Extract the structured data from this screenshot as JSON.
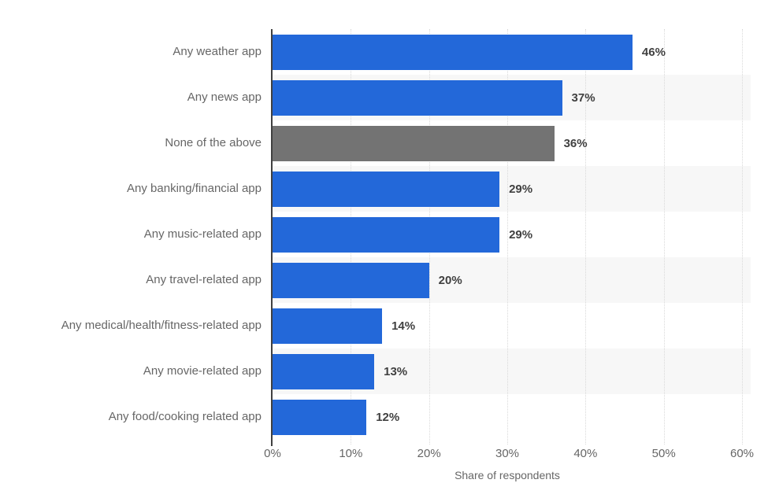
{
  "chart_data": {
    "type": "bar",
    "orientation": "horizontal",
    "title": "",
    "xlabel": "Share of respondents",
    "ylabel": "",
    "xlim": [
      0,
      60
    ],
    "grid": "vertical dotted gridlines every 10%",
    "legend": "none",
    "categories": [
      "Any weather app",
      "Any news app",
      "None of the above",
      "Any banking/financial app",
      "Any music-related app",
      "Any travel-related app",
      "Any medical/health/fitness-related app",
      "Any movie-related app",
      "Any food/cooking related app"
    ],
    "values": [
      46,
      37,
      36,
      29,
      29,
      20,
      14,
      13,
      12
    ],
    "value_labels": [
      "46%",
      "37%",
      "36%",
      "29%",
      "29%",
      "20%",
      "14%",
      "13%",
      "12%"
    ],
    "highlight_index": 2,
    "xticks": {
      "values": [
        0,
        10,
        20,
        30,
        40,
        50,
        60
      ],
      "labels": [
        "0%",
        "10%",
        "20%",
        "30%",
        "40%",
        "50%",
        "60%"
      ]
    }
  },
  "colors": {
    "bar_blue": "#2368d9",
    "bar_gray": "#737373",
    "row_stripe": "#f7f7f7",
    "gridline": "#d9d9d9",
    "axis_line": "#404040",
    "category_label": "#666666",
    "value_label": "#404040",
    "tick_label": "#666666",
    "axis_title": "#666666",
    "background": "#ffffff"
  }
}
